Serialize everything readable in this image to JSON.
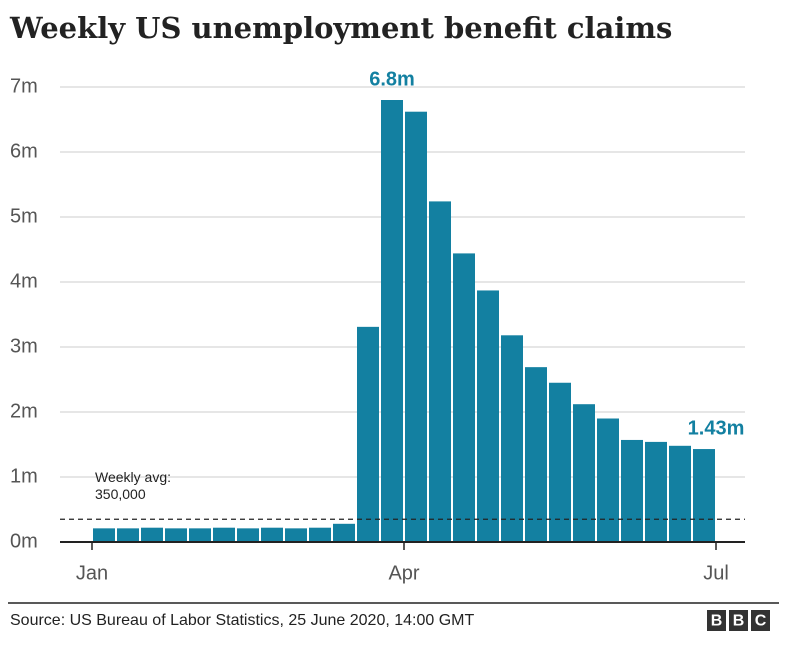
{
  "chart_data": {
    "type": "bar",
    "title": "Weekly US unemployment benefit claims",
    "categories": [
      null,
      null,
      null,
      null,
      null,
      null,
      null,
      null,
      null,
      null,
      null,
      null,
      null,
      null,
      null,
      null,
      null,
      null,
      null,
      null,
      null,
      null,
      null,
      null,
      null,
      null
    ],
    "values": [
      0.21,
      0.21,
      0.22,
      0.21,
      0.21,
      0.22,
      0.21,
      0.22,
      0.21,
      0.22,
      0.28,
      3.31,
      6.8,
      6.62,
      5.24,
      4.44,
      3.87,
      3.18,
      2.69,
      2.45,
      2.12,
      1.9,
      1.57,
      1.54,
      1.48,
      1.43
    ],
    "value_labels": [
      null,
      null,
      null,
      null,
      null,
      null,
      null,
      null,
      null,
      null,
      null,
      null,
      "6.8m",
      null,
      null,
      null,
      null,
      null,
      null,
      null,
      null,
      null,
      null,
      null,
      null,
      "1.43m"
    ],
    "color": "#1380a1",
    "ylim": [
      0,
      7
    ],
    "yticks": [
      {
        "value": 0,
        "label": "0m"
      },
      {
        "value": 1,
        "label": "1m"
      },
      {
        "value": 2,
        "label": "2m"
      },
      {
        "value": 3,
        "label": "3m"
      },
      {
        "value": 4,
        "label": "4m"
      },
      {
        "value": 5,
        "label": "5m"
      },
      {
        "value": 6,
        "label": "6m"
      },
      {
        "value": 7,
        "label": "7m"
      }
    ],
    "xticks": [
      {
        "value": 0,
        "label": "Jan"
      },
      {
        "value": 13,
        "label": "Apr"
      },
      {
        "value": 26,
        "label": "Jul"
      }
    ],
    "grid": true,
    "average": {
      "value": 0.35,
      "label": [
        "Weekly avg:",
        "350,000"
      ]
    },
    "source": "Source: US Bureau of Labor Statistics, 25 June 2020, 14:00 GMT",
    "logo": [
      "B",
      "B",
      "C"
    ]
  }
}
